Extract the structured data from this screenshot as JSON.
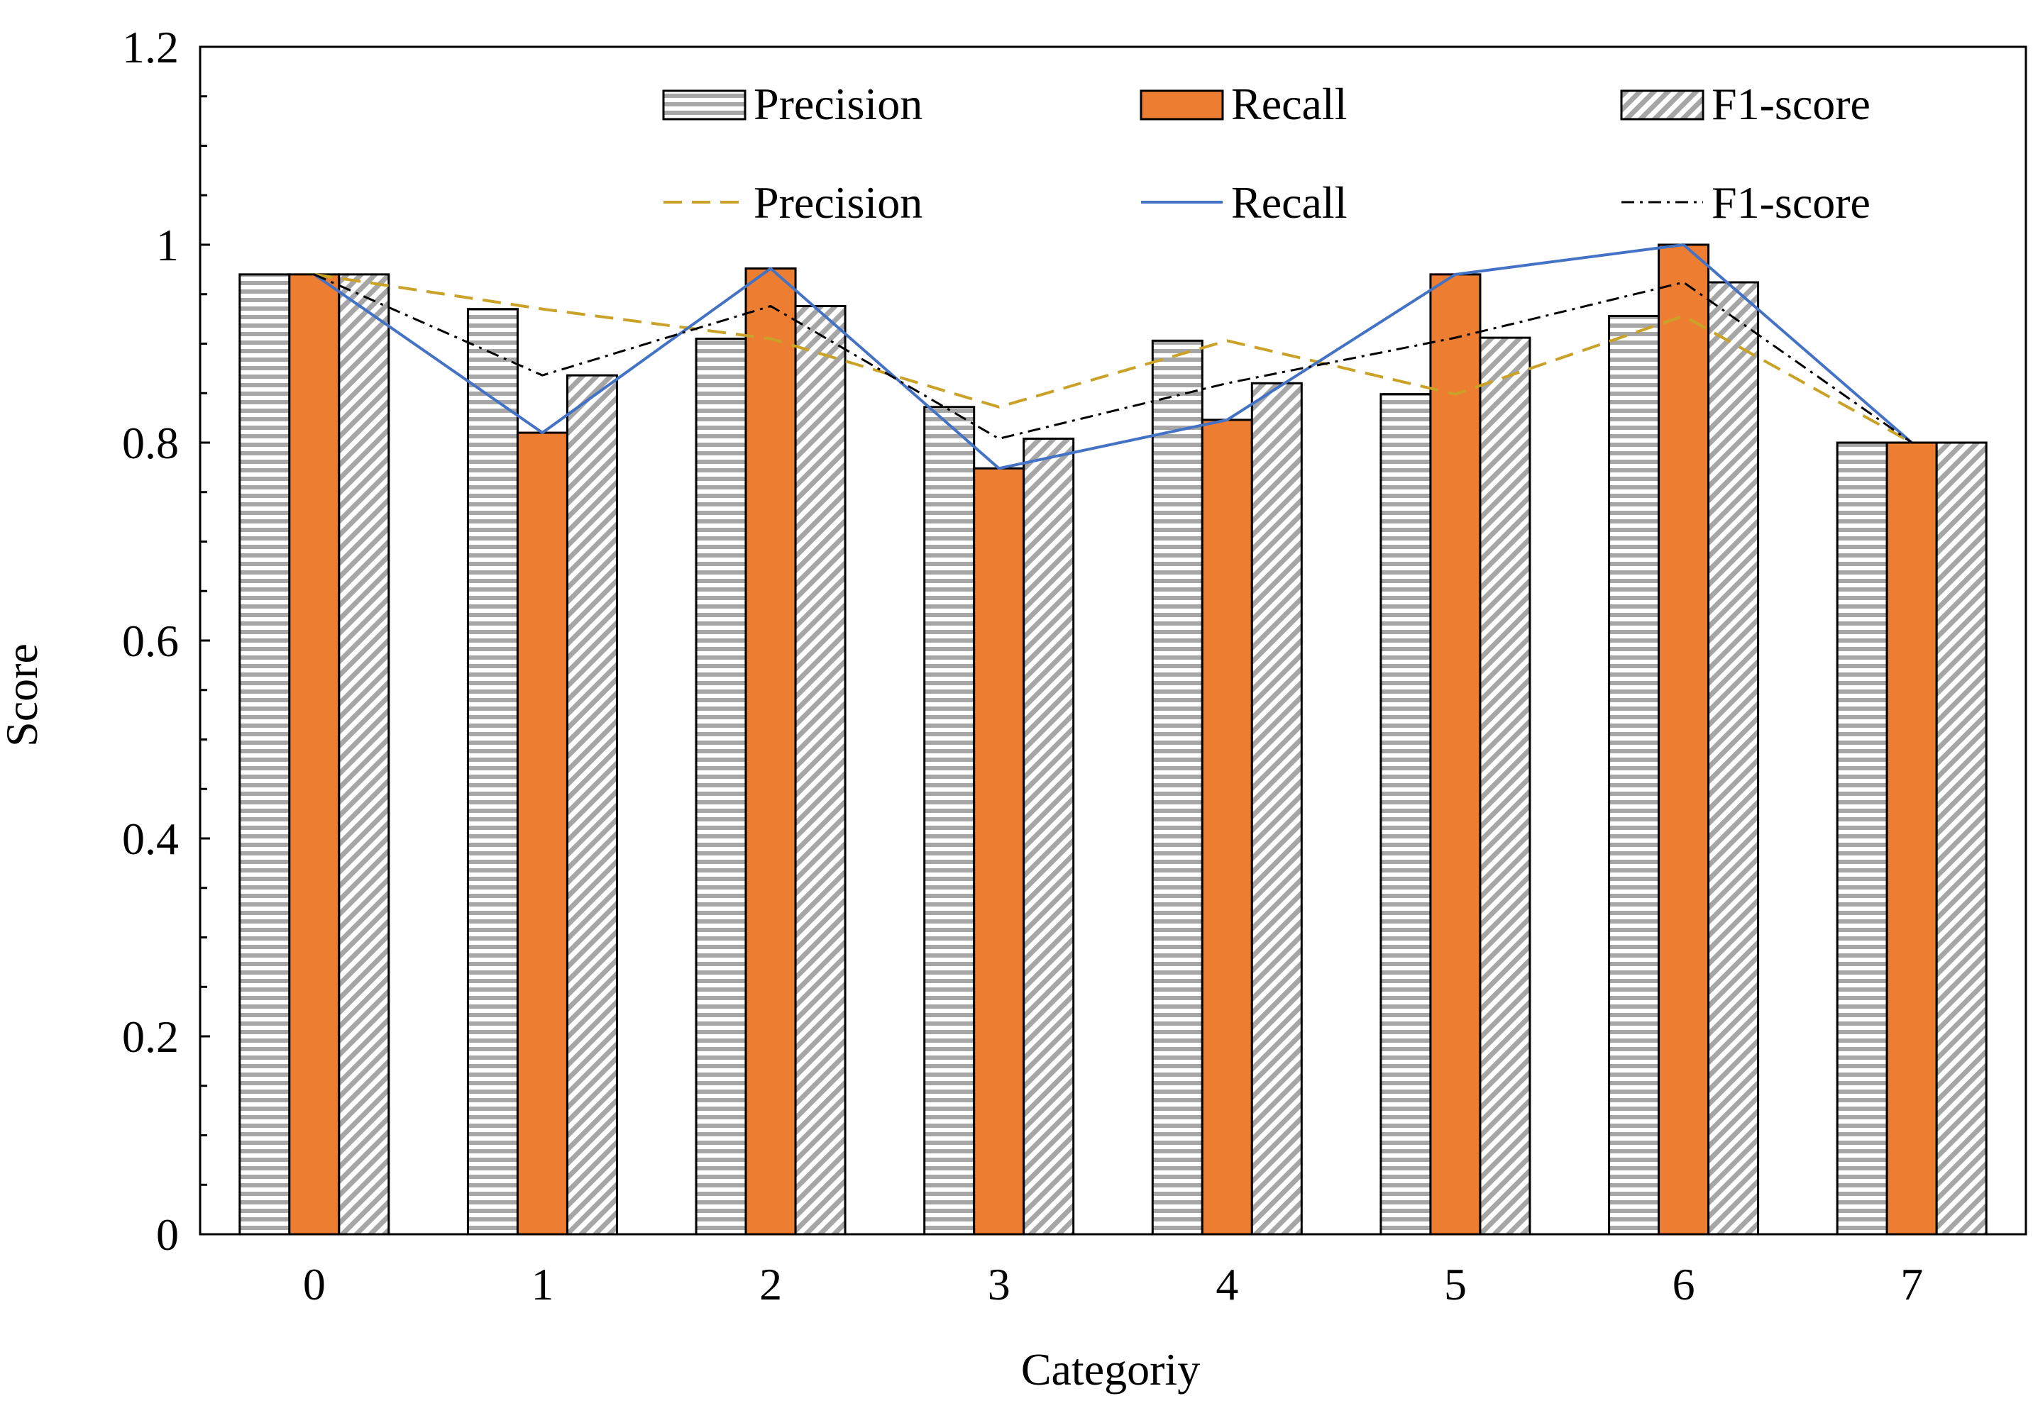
{
  "chart_data": {
    "type": "bar",
    "title": "",
    "xlabel": "Categoriy",
    "ylabel": "Score",
    "ylim": [
      0,
      1.2
    ],
    "yticks": [
      "0",
      "0.2",
      "0.4",
      "0.6",
      "0.8",
      "1",
      "1.2"
    ],
    "categories": [
      "0",
      "1",
      "2",
      "3",
      "4",
      "5",
      "6",
      "7"
    ],
    "series": [
      {
        "name": "Precision",
        "kind": "bar",
        "pattern": "horizontal-stripes",
        "values": [
          0.97,
          0.935,
          0.905,
          0.836,
          0.903,
          0.849,
          0.928,
          0.8
        ]
      },
      {
        "name": "Recall",
        "kind": "bar",
        "pattern": "solid",
        "color": "#ED7D31",
        "values": [
          0.97,
          0.81,
          0.976,
          0.774,
          0.823,
          0.97,
          1.0,
          0.8
        ]
      },
      {
        "name": "F1-score",
        "kind": "bar",
        "pattern": "diagonal-stripes",
        "values": [
          0.97,
          0.868,
          0.938,
          0.804,
          0.86,
          0.906,
          0.962,
          0.8
        ]
      }
    ],
    "lines": [
      {
        "name": "Precision",
        "style": "dashed",
        "color": "#C9A227",
        "values": [
          0.97,
          0.935,
          0.905,
          0.836,
          0.903,
          0.849,
          0.928,
          0.8
        ]
      },
      {
        "name": "Recall",
        "style": "solid",
        "color": "#4472C4",
        "values": [
          0.97,
          0.81,
          0.976,
          0.774,
          0.823,
          0.97,
          1.0,
          0.8
        ]
      },
      {
        "name": "F1-score",
        "style": "dash-dot",
        "color": "#000000",
        "values": [
          0.97,
          0.868,
          0.938,
          0.804,
          0.86,
          0.906,
          0.962,
          0.8
        ]
      }
    ],
    "legend": {
      "placement": "top-right",
      "bar_labels": [
        "Precision",
        "Recall",
        "F1-score"
      ],
      "line_labels": [
        "Precision",
        "Recall",
        "F1-score"
      ]
    }
  },
  "colors": {
    "recall_bar": "#ED7D31",
    "stripe_gray": "#A6A6A6",
    "precision_line": "#C9A227",
    "recall_line": "#4472C4",
    "f1_line": "#000000"
  }
}
